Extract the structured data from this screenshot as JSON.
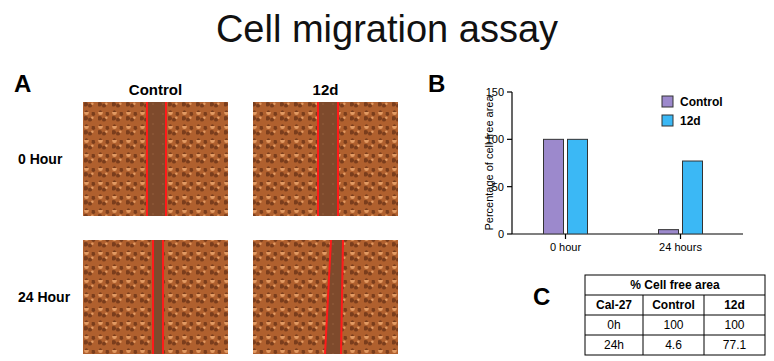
{
  "title": "Cell migration assay",
  "panel_a": {
    "label": "A",
    "columns": [
      "Control",
      "12d"
    ],
    "rows": [
      "0 Hour",
      "24 Hour"
    ]
  },
  "panel_b": {
    "label": "B"
  },
  "chart_data": {
    "type": "bar",
    "y_label": "Percentage of cell free area",
    "categories": [
      "0 hour",
      "24 hours"
    ],
    "series": [
      {
        "name": "Control",
        "color": "#9c89cc",
        "values": [
          100,
          4.6
        ]
      },
      {
        "name": "12d",
        "color": "#3bb8f5",
        "values": [
          100,
          77.1
        ]
      }
    ],
    "ylim": [
      0,
      150
    ],
    "yticks": [
      0,
      50,
      100,
      150
    ],
    "grid": false,
    "legend": "right"
  },
  "panel_c": {
    "label": "C",
    "table": {
      "title": "% Cell free area",
      "header": [
        "Cal-27",
        "Control",
        "12d"
      ],
      "rows": [
        [
          "0h",
          100,
          100
        ],
        [
          "24h",
          4.6,
          77.1
        ]
      ]
    }
  }
}
